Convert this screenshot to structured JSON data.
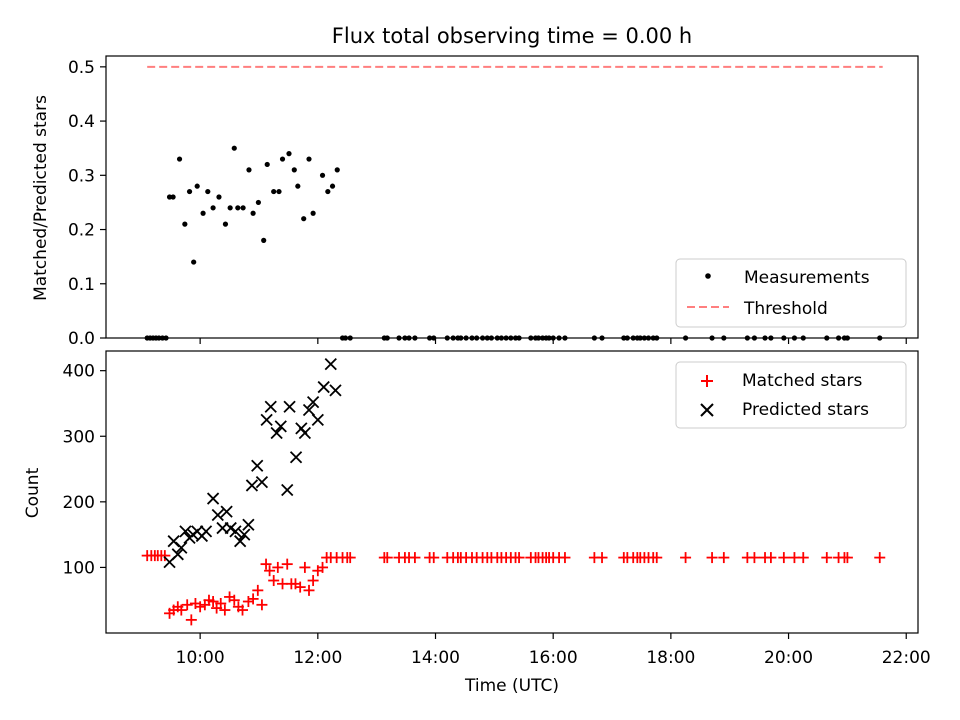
{
  "colors": {
    "threshold": "#ff7f7f",
    "measurement": "#000000",
    "matched": "#ff0000",
    "predicted": "#000000"
  },
  "chart_data": [
    {
      "type": "scatter",
      "title": "Flux total observing time = 0.00 h",
      "xlabel": "",
      "ylabel": "Matched/Predicted stars",
      "xlim": [
        8.4,
        22.2
      ],
      "ylim": [
        0,
        0.52
      ],
      "yticks": [
        0.0,
        0.1,
        0.2,
        0.3,
        0.4,
        0.5
      ],
      "ytick_labels": [
        "0.0",
        "0.1",
        "0.2",
        "0.3",
        "0.4",
        "0.5"
      ],
      "xticks": [
        10,
        12,
        14,
        16,
        18,
        20,
        22
      ],
      "grid": false,
      "legend": {
        "position": "lower right",
        "entries": [
          "Measurements",
          "Threshold"
        ]
      },
      "threshold": {
        "name": "Threshold",
        "value": 0.5,
        "x": [
          9.1,
          21.6
        ]
      },
      "series": [
        {
          "name": "Measurements",
          "x": [
            9.48,
            9.54,
            9.65,
            9.74,
            9.82,
            9.89,
            9.95,
            10.05,
            10.13,
            10.22,
            10.32,
            10.43,
            10.51,
            10.58,
            10.64,
            10.73,
            10.83,
            10.9,
            10.99,
            11.08,
            11.14,
            11.25,
            11.34,
            11.4,
            11.51,
            11.6,
            11.66,
            11.76,
            11.85,
            11.92,
            12.08,
            12.17,
            12.25,
            12.33,
            9.1,
            9.15,
            9.2,
            9.25,
            9.3,
            9.36,
            9.42,
            12.42,
            12.47,
            12.55,
            13.13,
            13.18,
            13.38,
            13.48,
            13.55,
            13.65,
            13.9,
            13.97,
            14.2,
            14.3,
            14.38,
            14.43,
            14.52,
            14.62,
            14.7,
            14.8,
            14.88,
            14.95,
            15.05,
            15.12,
            15.2,
            15.28,
            15.36,
            15.42,
            15.62,
            15.7,
            15.75,
            15.82,
            15.88,
            15.93,
            16.0,
            16.1,
            16.2,
            16.7,
            16.83,
            17.2,
            17.26,
            17.36,
            17.43,
            17.48,
            17.55,
            17.62,
            17.7,
            17.76,
            18.25,
            18.7,
            18.9,
            19.3,
            19.42,
            19.6,
            19.7,
            19.92,
            20.1,
            20.25,
            20.65,
            20.85,
            20.95,
            21.0,
            21.55
          ],
          "y": [
            0.26,
            0.26,
            0.33,
            0.21,
            0.27,
            0.14,
            0.28,
            0.23,
            0.27,
            0.24,
            0.26,
            0.21,
            0.24,
            0.35,
            0.24,
            0.24,
            0.31,
            0.23,
            0.25,
            0.18,
            0.32,
            0.27,
            0.27,
            0.33,
            0.34,
            0.31,
            0.28,
            0.22,
            0.33,
            0.23,
            0.3,
            0.27,
            0.28,
            0.31,
            0,
            0,
            0,
            0,
            0,
            0,
            0,
            0,
            0,
            0,
            0,
            0,
            0,
            0,
            0,
            0,
            0,
            0,
            0,
            0,
            0,
            0,
            0,
            0,
            0,
            0,
            0,
            0,
            0,
            0,
            0,
            0,
            0,
            0,
            0,
            0,
            0,
            0,
            0,
            0,
            0,
            0,
            0,
            0,
            0,
            0,
            0,
            0,
            0,
            0,
            0,
            0,
            0,
            0,
            0,
            0,
            0,
            0,
            0,
            0,
            0,
            0,
            0,
            0,
            0,
            0,
            0,
            0,
            0
          ]
        }
      ]
    },
    {
      "type": "scatter",
      "title": "",
      "xlabel": "Time (UTC)",
      "ylabel": "Count",
      "xlim": [
        8.4,
        22.2
      ],
      "ylim": [
        0,
        430
      ],
      "yticks": [
        100,
        200,
        300,
        400
      ],
      "ytick_labels": [
        "100",
        "200",
        "300",
        "400"
      ],
      "xticks": [
        10,
        12,
        14,
        16,
        18,
        20,
        22
      ],
      "xtick_labels": [
        "10:00",
        "12:00",
        "14:00",
        "16:00",
        "18:00",
        "20:00",
        "22:00"
      ],
      "grid": false,
      "legend": {
        "position": "upper right",
        "entries": [
          "Matched stars",
          "Predicted stars"
        ]
      },
      "series": [
        {
          "name": "Matched stars",
          "marker": "+",
          "x": [
            9.1,
            9.17,
            9.23,
            9.28,
            9.34,
            9.4,
            9.48,
            9.55,
            9.62,
            9.68,
            9.78,
            9.85,
            9.92,
            10.0,
            10.08,
            10.15,
            10.22,
            10.28,
            10.35,
            10.42,
            10.5,
            10.58,
            10.65,
            10.72,
            10.82,
            10.9,
            10.98,
            11.05,
            11.12,
            11.18,
            11.25,
            11.32,
            11.4,
            11.48,
            11.55,
            11.62,
            11.7,
            11.78,
            11.85,
            11.92,
            12.0,
            12.08,
            12.15,
            12.22,
            12.32,
            12.42,
            12.5,
            12.55,
            13.13,
            13.18,
            13.38,
            13.48,
            13.55,
            13.65,
            13.9,
            13.97,
            14.2,
            14.3,
            14.38,
            14.43,
            14.52,
            14.62,
            14.7,
            14.8,
            14.88,
            14.95,
            15.05,
            15.12,
            15.2,
            15.28,
            15.36,
            15.42,
            15.62,
            15.7,
            15.75,
            15.82,
            15.88,
            15.93,
            16.0,
            16.1,
            16.2,
            16.7,
            16.83,
            17.2,
            17.26,
            17.36,
            17.43,
            17.48,
            17.55,
            17.62,
            17.7,
            17.76,
            18.25,
            18.7,
            18.9,
            19.3,
            19.42,
            19.6,
            19.7,
            19.92,
            20.1,
            20.25,
            20.65,
            20.85,
            20.95,
            21.0,
            21.55
          ],
          "y": [
            118,
            118,
            118,
            118,
            118,
            118,
            30,
            35,
            40,
            35,
            43,
            20,
            45,
            40,
            43,
            50,
            48,
            38,
            45,
            35,
            55,
            50,
            40,
            35,
            48,
            52,
            65,
            43,
            105,
            95,
            80,
            100,
            75,
            105,
            75,
            75,
            70,
            100,
            65,
            80,
            95,
            100,
            115,
            115,
            115,
            115,
            115,
            115,
            115,
            115,
            115,
            115,
            115,
            115,
            115,
            115,
            115,
            115,
            115,
            115,
            115,
            115,
            115,
            115,
            115,
            115,
            115,
            115,
            115,
            115,
            115,
            115,
            115,
            115,
            115,
            115,
            115,
            115,
            115,
            115,
            115,
            115,
            115,
            115,
            115,
            115,
            115,
            115,
            115,
            115,
            115,
            115,
            115,
            115,
            115,
            115,
            115,
            115,
            115,
            115,
            115,
            115,
            115,
            115,
            115,
            115,
            115
          ]
        },
        {
          "name": "Predicted stars",
          "marker": "x",
          "x": [
            9.48,
            9.55,
            9.62,
            9.68,
            9.75,
            9.82,
            9.88,
            9.95,
            10.03,
            10.1,
            10.22,
            10.3,
            10.38,
            10.45,
            10.52,
            10.6,
            10.68,
            10.75,
            10.82,
            10.88,
            10.97,
            11.05,
            11.13,
            11.2,
            11.3,
            11.37,
            11.48,
            11.52,
            11.63,
            11.72,
            11.78,
            11.85,
            11.92,
            12.0,
            12.1,
            12.22,
            12.3
          ],
          "y": [
            108,
            140,
            120,
            130,
            155,
            145,
            150,
            155,
            148,
            155,
            205,
            180,
            160,
            185,
            160,
            155,
            140,
            150,
            165,
            225,
            255,
            230,
            325,
            345,
            305,
            315,
            218,
            345,
            268,
            312,
            305,
            340,
            352,
            325,
            375,
            410,
            370
          ]
        }
      ]
    }
  ]
}
